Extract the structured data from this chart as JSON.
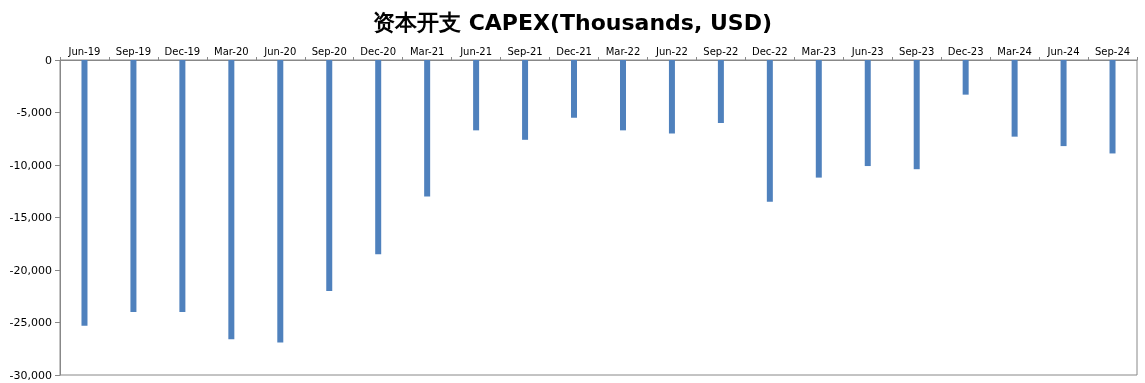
{
  "chart_data": {
    "type": "bar",
    "title": "资本开支 CAPEX(Thousands, USD)",
    "categories": [
      "Jun-19",
      "Sep-19",
      "Dec-19",
      "Mar-20",
      "Jun-20",
      "Sep-20",
      "Dec-20",
      "Mar-21",
      "Jun-21",
      "Sep-21",
      "Dec-21",
      "Mar-22",
      "Jun-22",
      "Sep-22",
      "Dec-22",
      "Mar-23",
      "Jun-23",
      "Sep-23",
      "Dec-23",
      "Mar-24",
      "Jun-24",
      "Sep-24"
    ],
    "values": [
      -25300,
      -24000,
      -24000,
      -26600,
      -26900,
      -22000,
      -18500,
      -13000,
      -6700,
      -7600,
      -5500,
      -6700,
      -7000,
      -6000,
      -13500,
      -11200,
      -10100,
      -10400,
      -3300,
      -7300,
      -8200,
      -8900
    ],
    "color": "#4f81bd",
    "ylim": [
      -30000,
      0
    ],
    "yticks": [
      {
        "value": -30000,
        "label": "-30,000"
      },
      {
        "value": -25000,
        "label": "-25,000"
      },
      {
        "value": -20000,
        "label": "-20,000"
      },
      {
        "value": -15000,
        "label": "-15,000"
      },
      {
        "value": -10000,
        "label": "-10,000"
      },
      {
        "value": -5000,
        "label": "-5,000"
      },
      0
    ],
    "grid": false
  }
}
